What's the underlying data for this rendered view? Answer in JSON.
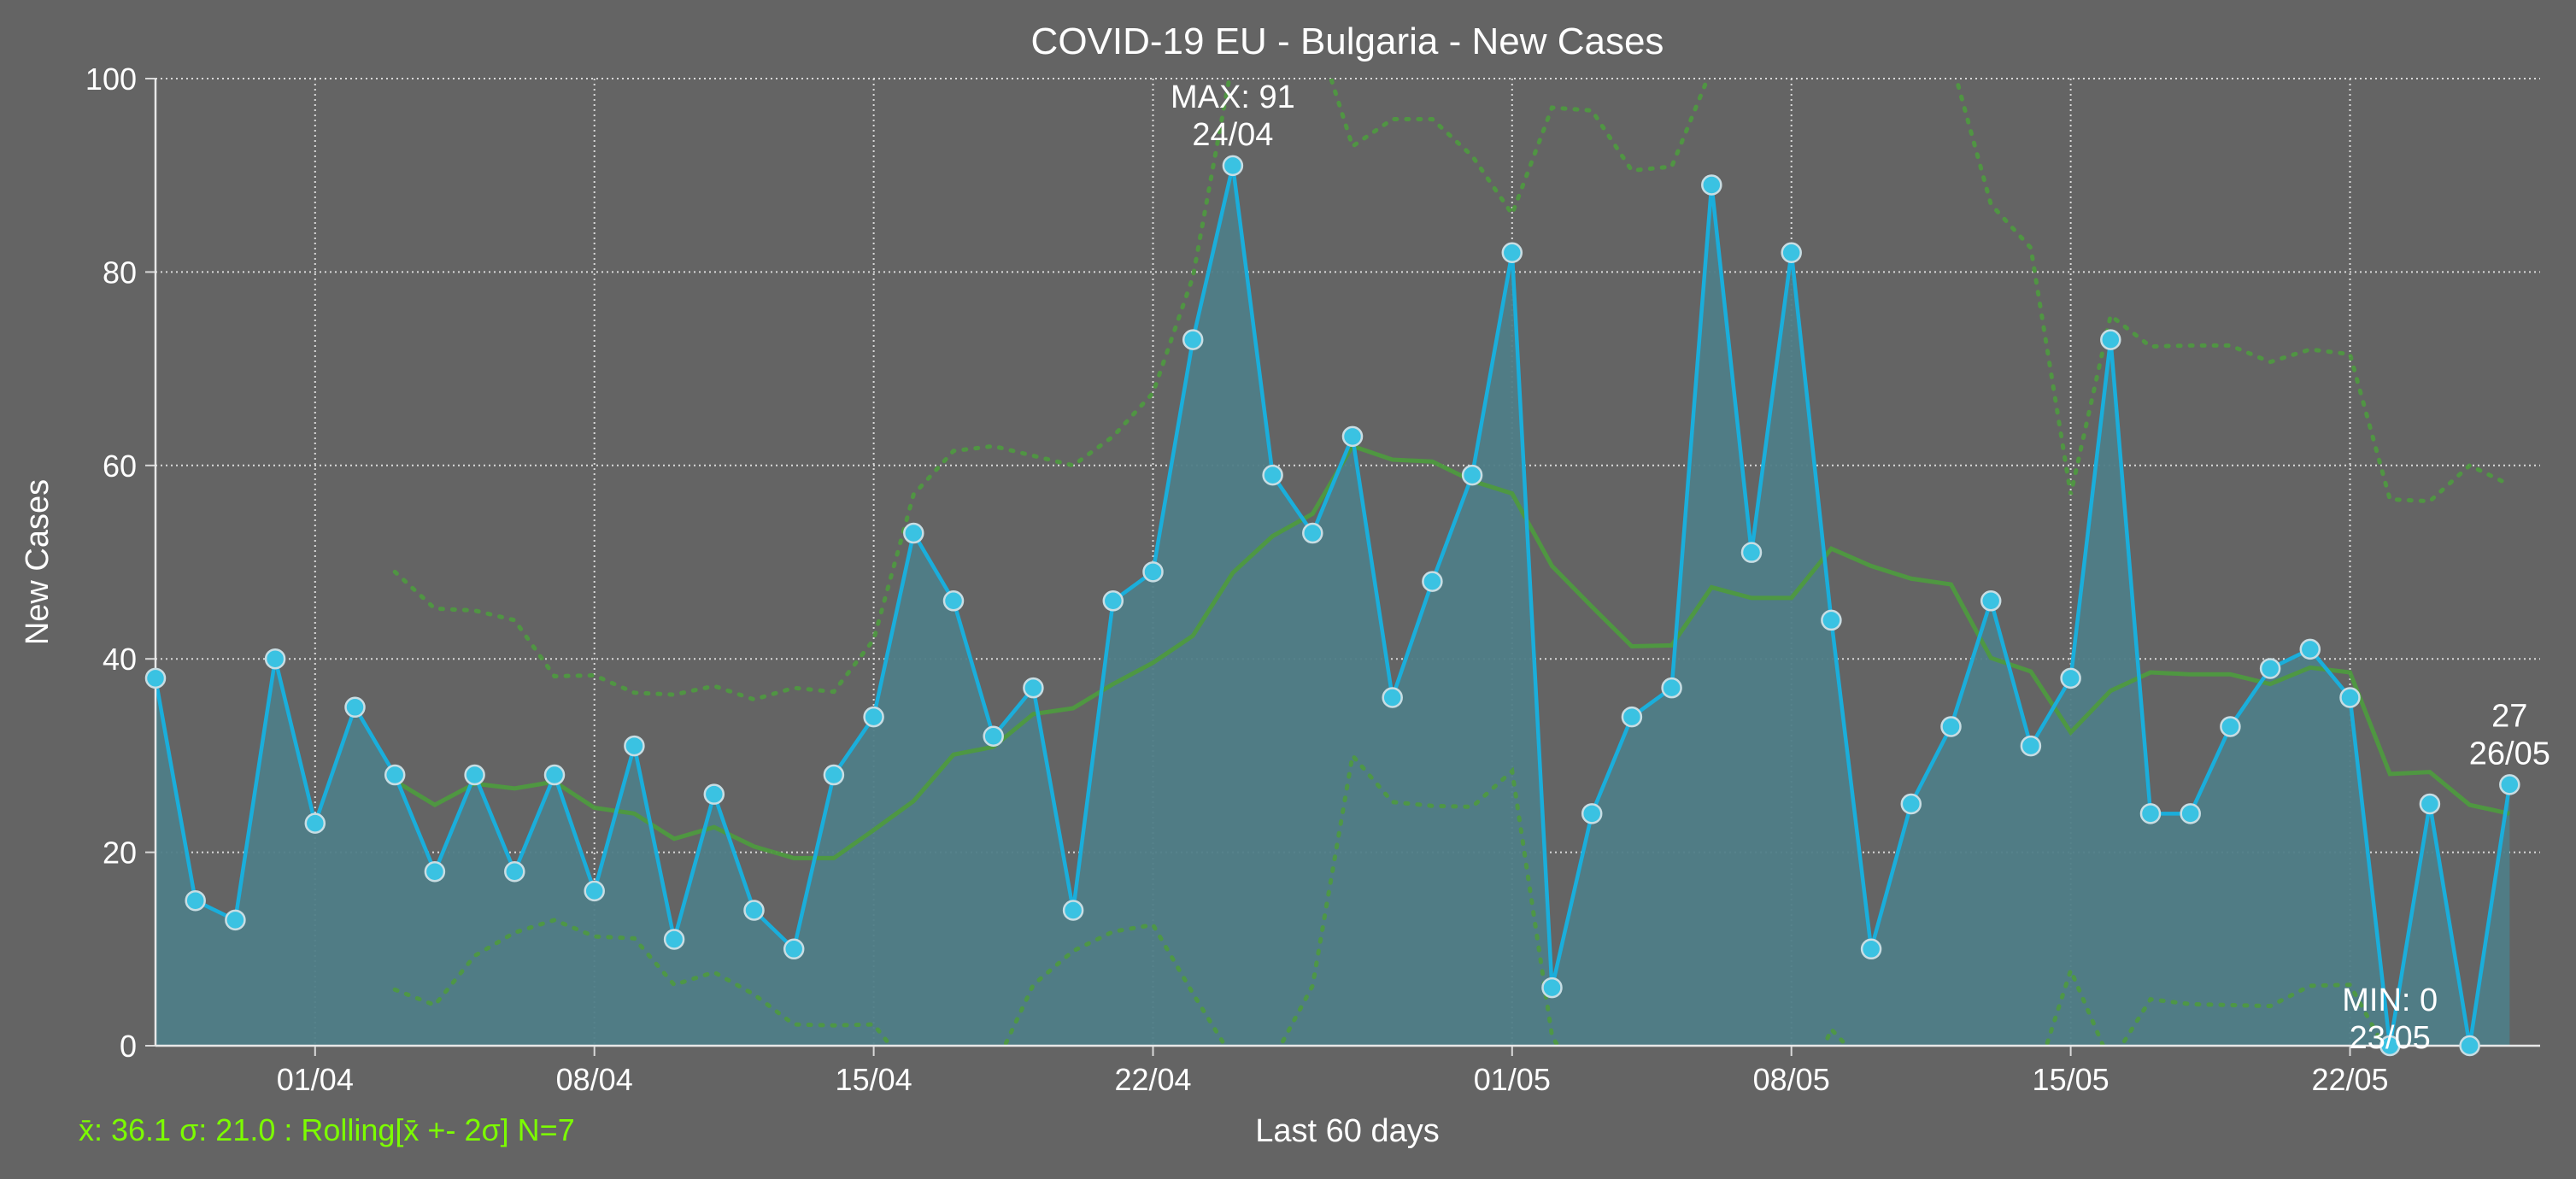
{
  "chart_data": {
    "type": "line",
    "title": "COVID-19 EU - Bulgaria - New Cases",
    "xlabel": "Last 60 days",
    "ylabel": "New Cases",
    "ylim": [
      0,
      100
    ],
    "yticks": [
      0,
      20,
      40,
      60,
      80,
      100
    ],
    "xticks": [
      {
        "index": 4,
        "label": "01/04"
      },
      {
        "index": 11,
        "label": "08/04"
      },
      {
        "index": 18,
        "label": "15/04"
      },
      {
        "index": 25,
        "label": "22/04"
      },
      {
        "index": 34,
        "label": "01/05"
      },
      {
        "index": 41,
        "label": "08/05"
      },
      {
        "index": 48,
        "label": "15/05"
      },
      {
        "index": 55,
        "label": "22/05"
      }
    ],
    "grid": true,
    "values": [
      38,
      15,
      13,
      40,
      23,
      35,
      28,
      18,
      28,
      18,
      28,
      16,
      31,
      11,
      26,
      14,
      10,
      28,
      34,
      53,
      46,
      32,
      37,
      14,
      46,
      49,
      73,
      91,
      59,
      53,
      63,
      36,
      48,
      59,
      82,
      6,
      24,
      34,
      37,
      89,
      51,
      82,
      44,
      10,
      25,
      33,
      46,
      31,
      38,
      73,
      24,
      24,
      33,
      39,
      41,
      36,
      0,
      25,
      0,
      27
    ],
    "rolling_mean": [
      null,
      null,
      null,
      null,
      null,
      null,
      27.4,
      24.9,
      27.1,
      26.6,
      27.3,
      24.6,
      24.0,
      21.4,
      22.6,
      20.6,
      19.4,
      19.4,
      22.3,
      25.3,
      30.1,
      30.9,
      34.3,
      34.9,
      37.4,
      39.6,
      42.4,
      48.9,
      52.7,
      55.0,
      62.0,
      60.6,
      60.4,
      58.4,
      57.1,
      49.6,
      45.4,
      41.3,
      41.4,
      47.4,
      46.3,
      46.3,
      51.4,
      49.6,
      48.3,
      47.7,
      40.1,
      38.7,
      32.4,
      36.7,
      38.6,
      38.4,
      38.4,
      37.4,
      39.1,
      38.6,
      28.1,
      28.3,
      24.9,
      24.0
    ],
    "band_upper": [
      null,
      null,
      null,
      null,
      null,
      null,
      49,
      45.2,
      45,
      44,
      38.2,
      38.3,
      36.5,
      36.3,
      37.2,
      35.8,
      37,
      36.6,
      42,
      57,
      61.5,
      62,
      61,
      60,
      63,
      67.5,
      79.5,
      102,
      108,
      106,
      93,
      95.8,
      95.8,
      92,
      86,
      97,
      96.7,
      90.5,
      90.9,
      101,
      102,
      102,
      102,
      102,
      102,
      102,
      87,
      82.5,
      57,
      75.5,
      72.3,
      72.4,
      72.4,
      70.7,
      72,
      71.5,
      56.5,
      56.3,
      60,
      58
    ],
    "band_lower": [
      null,
      null,
      null,
      null,
      null,
      null,
      5.8,
      4.2,
      9.3,
      11.7,
      13,
      11.3,
      11.1,
      6.3,
      7.6,
      5.3,
      2.2,
      2.1,
      2.2,
      -3,
      -3,
      -2.5,
      6.3,
      9.8,
      11.8,
      12.5,
      5.4,
      -1.3,
      -1.5,
      6.2,
      30,
      25.2,
      24.8,
      24.7,
      28.4,
      1,
      -6,
      -8,
      -8,
      -7,
      -7,
      -8,
      1.7,
      -2.7,
      -5.4,
      -10,
      -7,
      -5,
      7.8,
      -1.8,
      4.8,
      4.3,
      4.2,
      4.1,
      6.2,
      6.3,
      -1.2,
      -1.2,
      -11,
      -10
    ],
    "annotations": {
      "max": {
        "index": 27,
        "line1": "MAX: 91",
        "line2": "24/04"
      },
      "min": {
        "index": 56,
        "line1": "MIN: 0",
        "line2": "23/05"
      },
      "last": {
        "index": 59,
        "line1": "27",
        "line2": "26/05"
      }
    },
    "stats_text": "x̄: 36.1 σ: 21.0 : Rolling[x̄ +- 2σ] N=7"
  },
  "colors": {
    "background": "#646464",
    "line": "#1aaedb",
    "fill": "#4f7d87",
    "marker": "#3ac2e2",
    "marker_edge": "#c8dde3",
    "rolling": "#4e9a3f",
    "band": "#4e9a3f",
    "grid": "#d9d9d9",
    "text": "#ffffff",
    "stats": "#7cfc00"
  }
}
